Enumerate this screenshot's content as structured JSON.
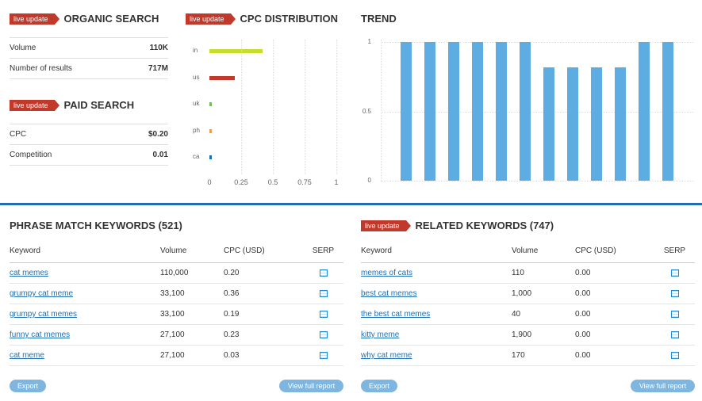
{
  "badge": "live update",
  "organic": {
    "title": "ORGANIC SEARCH",
    "rows": [
      {
        "label": "Volume",
        "value": "110K"
      },
      {
        "label": "Number of results",
        "value": "717M"
      }
    ]
  },
  "paid": {
    "title": "PAID SEARCH",
    "rows": [
      {
        "label": "CPC",
        "value": "$0.20"
      },
      {
        "label": "Competition",
        "value": "0.01"
      }
    ]
  },
  "cpc_dist": {
    "title": "CPC DISTRIBUTION",
    "ticks": [
      "0",
      "0.25",
      "0.5",
      "0.75",
      "1"
    ]
  },
  "trend": {
    "title": "TREND",
    "yticks": [
      "1",
      "0.5",
      "0"
    ]
  },
  "chart_data": [
    {
      "type": "bar",
      "orientation": "horizontal",
      "categories": [
        "in",
        "us",
        "uk",
        "ph",
        "ca"
      ],
      "values": [
        0.42,
        0.2,
        0.02,
        0.015,
        0.015
      ],
      "colors": [
        "#c9dd2c",
        "#c0392b",
        "#6cc24a",
        "#f39c4a",
        "#1f6fb2"
      ],
      "xlim": [
        0,
        1
      ],
      "title": "CPC DISTRIBUTION"
    },
    {
      "type": "bar",
      "values": [
        1,
        1,
        1,
        1,
        1,
        1,
        0.82,
        0.82,
        0.82,
        0.82,
        1,
        1
      ],
      "ylim": [
        0,
        1
      ],
      "color": "#5dade2",
      "title": "TREND"
    }
  ],
  "phrase": {
    "title": "PHRASE MATCH KEYWORDS (521)",
    "headers": {
      "kw": "Keyword",
      "vol": "Volume",
      "cpc": "CPC (USD)",
      "serp": "SERP"
    },
    "rows": [
      {
        "kw": "cat memes",
        "vol": "110,000",
        "cpc": "0.20"
      },
      {
        "kw": "grumpy cat meme",
        "vol": "33,100",
        "cpc": "0.36"
      },
      {
        "kw": "grumpy cat memes",
        "vol": "33,100",
        "cpc": "0.19"
      },
      {
        "kw": "funny cat memes",
        "vol": "27,100",
        "cpc": "0.23"
      },
      {
        "kw": "cat meme",
        "vol": "27,100",
        "cpc": "0.03"
      }
    ],
    "export": "Export",
    "full": "View full report"
  },
  "related": {
    "title": "RELATED KEYWORDS (747)",
    "headers": {
      "kw": "Keyword",
      "vol": "Volume",
      "cpc": "CPC (USD)",
      "serp": "SERP"
    },
    "rows": [
      {
        "kw": "memes of cats",
        "vol": "110",
        "cpc": "0.00"
      },
      {
        "kw": "best cat memes",
        "vol": "1,000",
        "cpc": "0.00"
      },
      {
        "kw": "the best cat memes",
        "vol": "40",
        "cpc": "0.00"
      },
      {
        "kw": "kitty meme",
        "vol": "1,900",
        "cpc": "0.00"
      },
      {
        "kw": "why cat meme",
        "vol": "170",
        "cpc": "0.00"
      }
    ],
    "export": "Export",
    "full": "View full report"
  }
}
